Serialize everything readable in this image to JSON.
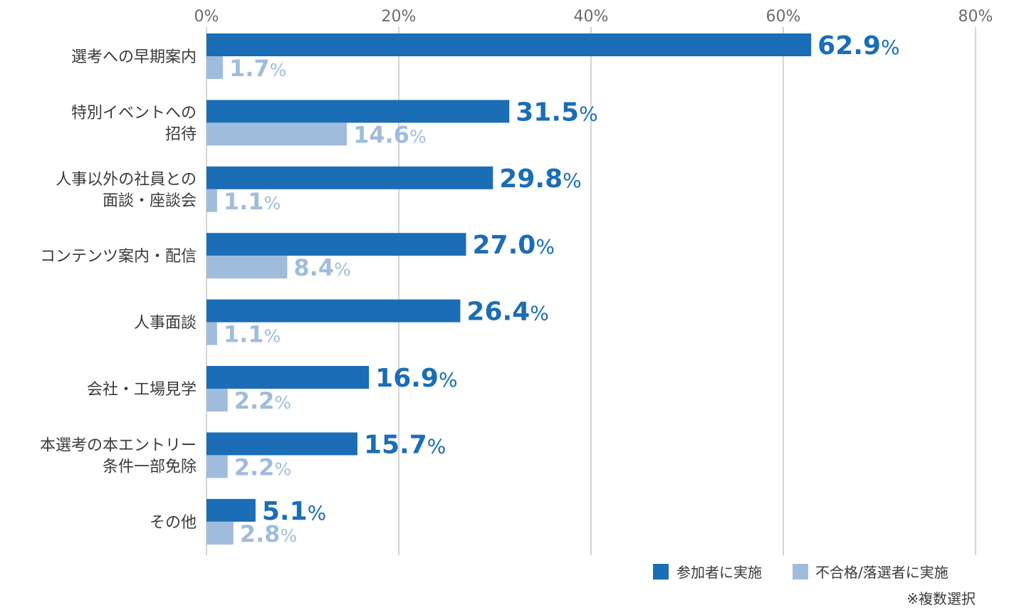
{
  "chart_data": {
    "type": "bar",
    "orientation": "horizontal",
    "categories": [
      [
        "選考への早期案内"
      ],
      [
        "特別イベントへの",
        "招待"
      ],
      [
        "人事以外の社員との",
        "面談・座談会"
      ],
      [
        "コンテンツ案内・配信"
      ],
      [
        "人事面談"
      ],
      [
        "会社・工場見学"
      ],
      [
        "本選考の本エントリー",
        "条件一部免除"
      ],
      [
        "その他"
      ]
    ],
    "series": [
      {
        "name": "参加者に実施",
        "color": "#1b6db5",
        "values": [
          62.9,
          31.5,
          29.8,
          27.0,
          26.4,
          16.9,
          15.7,
          5.1
        ]
      },
      {
        "name": "不合格/落選者に実施",
        "color": "#a0bcdc",
        "values": [
          1.7,
          14.6,
          1.1,
          8.4,
          1.1,
          2.2,
          2.2,
          2.8
        ]
      }
    ],
    "xlim": [
      0,
      80
    ],
    "xticks": [
      0,
      20,
      40,
      60,
      80
    ],
    "tick_suffix": "%",
    "value_suffix": "%",
    "gridlines": true,
    "legend_position": "bottom-right",
    "note": "※複数選択"
  }
}
